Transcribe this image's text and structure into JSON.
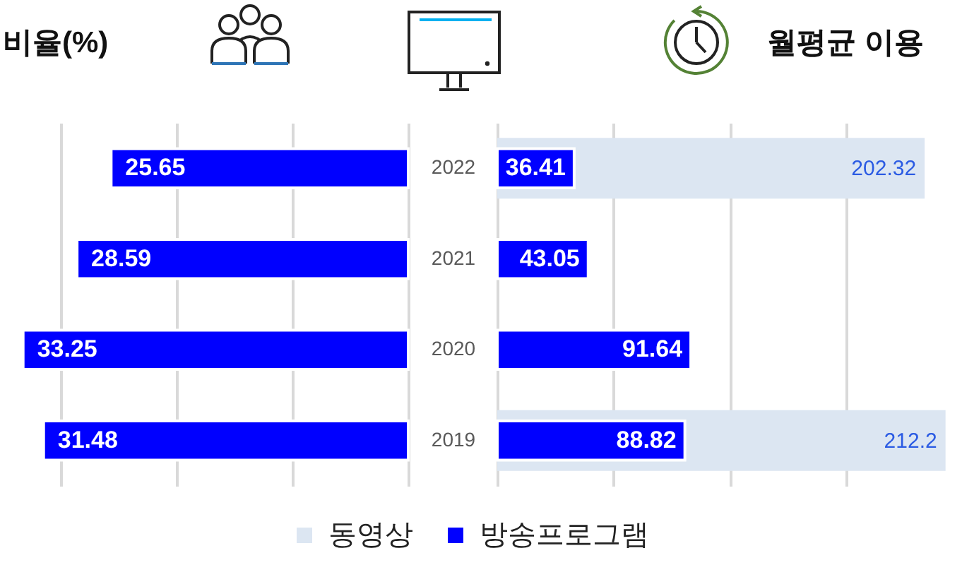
{
  "chart_data": [
    {
      "type": "bar",
      "title": "비율(%)",
      "orientation": "horizontal",
      "categories": [
        "2022",
        "2021",
        "2020",
        "2019"
      ],
      "series": [
        {
          "name": "동영상",
          "color": "#dce6f2",
          "values": [
            null,
            null,
            null,
            null
          ]
        },
        {
          "name": "방송프로그램",
          "color": "#0000ff",
          "values": [
            25.65,
            28.59,
            33.25,
            31.48
          ]
        }
      ],
      "xlim": [
        35,
        0
      ],
      "xticks": [
        {
          "value": 30,
          "label": null
        },
        {
          "value": 20,
          "label": null
        },
        {
          "value": 10,
          "label": null
        },
        {
          "value": 0,
          "label": null
        }
      ],
      "grid": "x",
      "tick_labels": "y",
      "legend": "bottom",
      "data_labels": true
    },
    {
      "type": "bar",
      "title": "월평균 이용",
      "orientation": "horizontal",
      "categories": [
        "2022",
        "2021",
        "2020",
        "2019"
      ],
      "series": [
        {
          "color": "#dce6f2",
          "values": [
            202.32,
            null,
            null,
            212.2
          ],
          "value_labels": [
            "202.32",
            null,
            null,
            "212.2"
          ]
        },
        {
          "color": "#0000ff",
          "values": [
            36.41,
            43.05,
            91.64,
            88.82
          ]
        }
      ],
      "xlim": [
        0,
        220
      ],
      "xticks": [
        {
          "value": 0,
          "label": null
        },
        {
          "value": 55,
          "label": null
        },
        {
          "value": 110,
          "label": null
        },
        {
          "value": 165,
          "label": null
        }
      ],
      "grid": "x",
      "tick_labels": false,
      "data_labels": true
    }
  ]
}
